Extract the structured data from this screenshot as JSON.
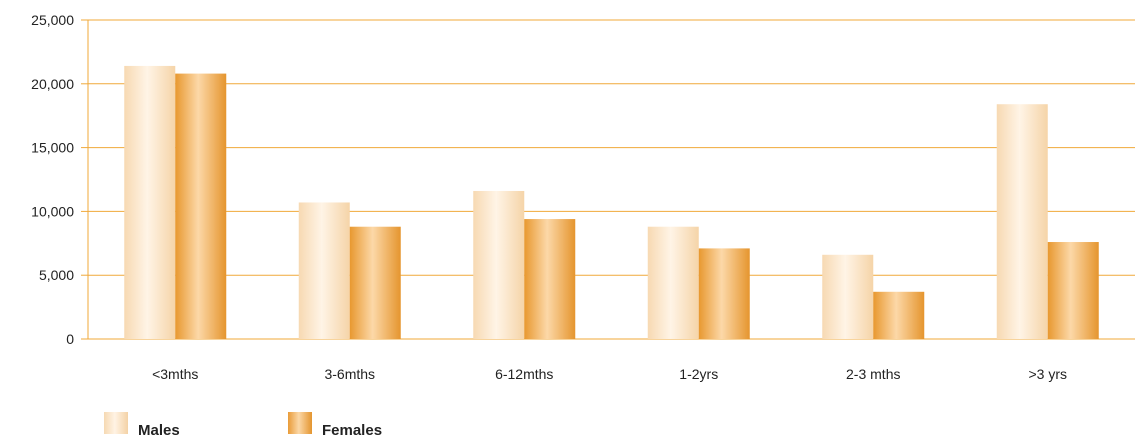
{
  "chart_data": {
    "type": "bar",
    "categories": [
      "<3mths",
      "3-6mths",
      "6-12mths",
      "1-2yrs",
      "2-3 mths",
      ">3 yrs"
    ],
    "series": [
      {
        "name": "Males",
        "values": [
          21400,
          10700,
          11600,
          8800,
          6600,
          18400
        ]
      },
      {
        "name": "Females",
        "values": [
          20800,
          8800,
          9400,
          7100,
          3700,
          7600
        ]
      }
    ],
    "yticks": [
      "0",
      "5,000",
      "10,000",
      "15,000",
      "20,000",
      "25,000"
    ],
    "ylim": [
      0,
      25000
    ],
    "grid": true,
    "legend_position": "bottom-left",
    "colors": {
      "males": "#fbe3c4",
      "females": "#f0ad55",
      "grid": "#f0a93a"
    }
  },
  "legend": {
    "males_label": "Males",
    "females_label": "Females"
  }
}
